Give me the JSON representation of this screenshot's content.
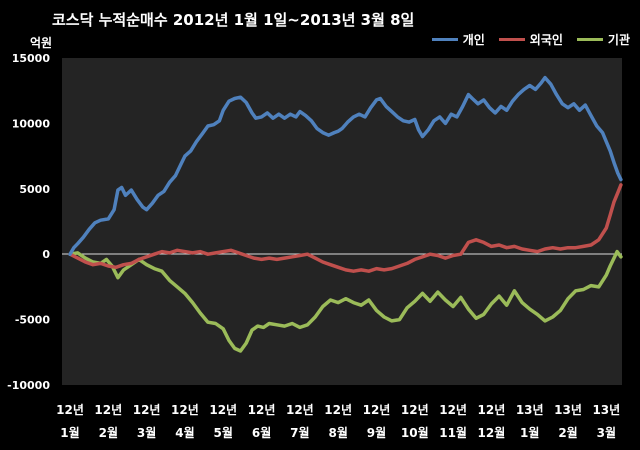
{
  "chart_data": {
    "type": "line",
    "title": "코스닥  누적순매수 2012년 1월 1일~2013년 3월 8일",
    "ylabel": "억원",
    "xlabel": "",
    "ylim": [
      -10000,
      15000
    ],
    "yticks": [
      15000,
      10000,
      5000,
      0,
      -5000,
      -10000
    ],
    "grid": false,
    "legend": "top-right",
    "x_index_range": [
      0,
      14.2
    ],
    "xtick_labels": [
      [
        "12년",
        "1월"
      ],
      [
        "12년",
        "2월"
      ],
      [
        "12년",
        "3월"
      ],
      [
        "12년",
        "4월"
      ],
      [
        "12년",
        "5월"
      ],
      [
        "12년",
        "6월"
      ],
      [
        "12년",
        "7월"
      ],
      [
        "12년",
        "8월"
      ],
      [
        "12년",
        "9월"
      ],
      [
        "12년",
        "10월"
      ],
      [
        "12년",
        "11월"
      ],
      [
        "12년",
        "12월"
      ],
      [
        "13년",
        "1월"
      ],
      [
        "13년",
        "2월"
      ],
      [
        "13년",
        "3월"
      ]
    ],
    "series": [
      {
        "name": "개인",
        "color": "#4f81bd",
        "points": [
          [
            0.0,
            0
          ],
          [
            0.1,
            500
          ],
          [
            0.2,
            800
          ],
          [
            0.35,
            1300
          ],
          [
            0.5,
            1900
          ],
          [
            0.65,
            2400
          ],
          [
            0.8,
            2600
          ],
          [
            1.0,
            2700
          ],
          [
            1.15,
            3400
          ],
          [
            1.25,
            4900
          ],
          [
            1.35,
            5100
          ],
          [
            1.45,
            4500
          ],
          [
            1.6,
            4900
          ],
          [
            1.75,
            4200
          ],
          [
            1.9,
            3600
          ],
          [
            2.0,
            3400
          ],
          [
            2.15,
            3900
          ],
          [
            2.3,
            4500
          ],
          [
            2.45,
            4800
          ],
          [
            2.6,
            5500
          ],
          [
            2.75,
            6000
          ],
          [
            2.9,
            6900
          ],
          [
            3.0,
            7500
          ],
          [
            3.15,
            7900
          ],
          [
            3.3,
            8600
          ],
          [
            3.45,
            9200
          ],
          [
            3.6,
            9800
          ],
          [
            3.75,
            9900
          ],
          [
            3.9,
            10200
          ],
          [
            4.0,
            11000
          ],
          [
            4.15,
            11700
          ],
          [
            4.3,
            11900
          ],
          [
            4.45,
            12000
          ],
          [
            4.6,
            11600
          ],
          [
            4.75,
            10800
          ],
          [
            4.85,
            10400
          ],
          [
            5.0,
            10500
          ],
          [
            5.15,
            10800
          ],
          [
            5.3,
            10400
          ],
          [
            5.45,
            10700
          ],
          [
            5.6,
            10400
          ],
          [
            5.75,
            10700
          ],
          [
            5.9,
            10500
          ],
          [
            6.0,
            10900
          ],
          [
            6.15,
            10600
          ],
          [
            6.3,
            10200
          ],
          [
            6.45,
            9600
          ],
          [
            6.6,
            9300
          ],
          [
            6.75,
            9100
          ],
          [
            6.9,
            9300
          ],
          [
            7.0,
            9400
          ],
          [
            7.1,
            9600
          ],
          [
            7.25,
            10100
          ],
          [
            7.4,
            10500
          ],
          [
            7.55,
            10700
          ],
          [
            7.7,
            10500
          ],
          [
            7.85,
            11200
          ],
          [
            8.0,
            11800
          ],
          [
            8.1,
            11900
          ],
          [
            8.25,
            11300
          ],
          [
            8.4,
            10900
          ],
          [
            8.55,
            10500
          ],
          [
            8.7,
            10200
          ],
          [
            8.85,
            10100
          ],
          [
            9.0,
            10300
          ],
          [
            9.1,
            9500
          ],
          [
            9.2,
            9000
          ],
          [
            9.35,
            9500
          ],
          [
            9.5,
            10200
          ],
          [
            9.65,
            10500
          ],
          [
            9.8,
            10000
          ],
          [
            9.95,
            10700
          ],
          [
            10.1,
            10500
          ],
          [
            10.25,
            11300
          ],
          [
            10.4,
            12200
          ],
          [
            10.5,
            11900
          ],
          [
            10.65,
            11500
          ],
          [
            10.8,
            11800
          ],
          [
            10.95,
            11200
          ],
          [
            11.1,
            10800
          ],
          [
            11.25,
            11300
          ],
          [
            11.4,
            11000
          ],
          [
            11.55,
            11700
          ],
          [
            11.7,
            12200
          ],
          [
            11.85,
            12600
          ],
          [
            12.0,
            12900
          ],
          [
            12.15,
            12600
          ],
          [
            12.3,
            13100
          ],
          [
            12.4,
            13500
          ],
          [
            12.55,
            13000
          ],
          [
            12.7,
            12200
          ],
          [
            12.85,
            11500
          ],
          [
            13.0,
            11200
          ],
          [
            13.15,
            11500
          ],
          [
            13.3,
            11000
          ],
          [
            13.45,
            11400
          ],
          [
            13.6,
            10600
          ],
          [
            13.75,
            9800
          ],
          [
            13.9,
            9300
          ],
          [
            14.0,
            8600
          ],
          [
            14.1,
            7900
          ],
          [
            14.2,
            7000
          ],
          [
            14.3,
            6200
          ],
          [
            14.38,
            5700
          ]
        ]
      },
      {
        "name": "외국인",
        "color": "#c0504d",
        "points": [
          [
            0.0,
            0
          ],
          [
            0.2,
            -300
          ],
          [
            0.4,
            -600
          ],
          [
            0.6,
            -800
          ],
          [
            0.8,
            -700
          ],
          [
            1.0,
            -900
          ],
          [
            1.2,
            -1000
          ],
          [
            1.4,
            -800
          ],
          [
            1.6,
            -700
          ],
          [
            1.8,
            -400
          ],
          [
            2.0,
            -200
          ],
          [
            2.2,
            0
          ],
          [
            2.4,
            200
          ],
          [
            2.6,
            100
          ],
          [
            2.8,
            300
          ],
          [
            3.0,
            200
          ],
          [
            3.2,
            100
          ],
          [
            3.4,
            200
          ],
          [
            3.6,
            0
          ],
          [
            3.8,
            100
          ],
          [
            4.0,
            200
          ],
          [
            4.2,
            300
          ],
          [
            4.4,
            100
          ],
          [
            4.6,
            -100
          ],
          [
            4.8,
            -300
          ],
          [
            5.0,
            -400
          ],
          [
            5.2,
            -300
          ],
          [
            5.4,
            -400
          ],
          [
            5.6,
            -300
          ],
          [
            5.8,
            -200
          ],
          [
            6.0,
            -100
          ],
          [
            6.2,
            0
          ],
          [
            6.4,
            -300
          ],
          [
            6.6,
            -600
          ],
          [
            6.8,
            -800
          ],
          [
            7.0,
            -1000
          ],
          [
            7.2,
            -1200
          ],
          [
            7.4,
            -1300
          ],
          [
            7.6,
            -1200
          ],
          [
            7.8,
            -1300
          ],
          [
            8.0,
            -1100
          ],
          [
            8.2,
            -1200
          ],
          [
            8.4,
            -1100
          ],
          [
            8.6,
            -900
          ],
          [
            8.8,
            -700
          ],
          [
            9.0,
            -400
          ],
          [
            9.2,
            -200
          ],
          [
            9.4,
            0
          ],
          [
            9.6,
            -100
          ],
          [
            9.8,
            -300
          ],
          [
            10.0,
            -100
          ],
          [
            10.2,
            0
          ],
          [
            10.4,
            900
          ],
          [
            10.6,
            1100
          ],
          [
            10.8,
            900
          ],
          [
            11.0,
            600
          ],
          [
            11.2,
            700
          ],
          [
            11.4,
            500
          ],
          [
            11.6,
            600
          ],
          [
            11.8,
            400
          ],
          [
            12.0,
            300
          ],
          [
            12.2,
            200
          ],
          [
            12.4,
            400
          ],
          [
            12.6,
            500
          ],
          [
            12.8,
            400
          ],
          [
            13.0,
            500
          ],
          [
            13.2,
            500
          ],
          [
            13.4,
            600
          ],
          [
            13.6,
            700
          ],
          [
            13.8,
            1100
          ],
          [
            14.0,
            2000
          ],
          [
            14.1,
            3000
          ],
          [
            14.2,
            4000
          ],
          [
            14.3,
            4700
          ],
          [
            14.38,
            5300
          ]
        ]
      },
      {
        "name": "기관",
        "color": "#9bbb59",
        "points": [
          [
            0.0,
            0
          ],
          [
            0.2,
            100
          ],
          [
            0.4,
            -300
          ],
          [
            0.6,
            -600
          ],
          [
            0.8,
            -700
          ],
          [
            0.95,
            -400
          ],
          [
            1.1,
            -900
          ],
          [
            1.25,
            -1800
          ],
          [
            1.4,
            -1200
          ],
          [
            1.6,
            -800
          ],
          [
            1.8,
            -400
          ],
          [
            2.0,
            -800
          ],
          [
            2.2,
            -1100
          ],
          [
            2.4,
            -1300
          ],
          [
            2.6,
            -2000
          ],
          [
            2.8,
            -2500
          ],
          [
            3.0,
            -3000
          ],
          [
            3.2,
            -3700
          ],
          [
            3.4,
            -4500
          ],
          [
            3.6,
            -5200
          ],
          [
            3.8,
            -5300
          ],
          [
            4.0,
            -5700
          ],
          [
            4.15,
            -6600
          ],
          [
            4.3,
            -7200
          ],
          [
            4.45,
            -7400
          ],
          [
            4.6,
            -6800
          ],
          [
            4.75,
            -5800
          ],
          [
            4.9,
            -5500
          ],
          [
            5.05,
            -5600
          ],
          [
            5.2,
            -5300
          ],
          [
            5.4,
            -5400
          ],
          [
            5.6,
            -5500
          ],
          [
            5.8,
            -5300
          ],
          [
            6.0,
            -5600
          ],
          [
            6.2,
            -5400
          ],
          [
            6.4,
            -4800
          ],
          [
            6.6,
            -4000
          ],
          [
            6.8,
            -3500
          ],
          [
            7.0,
            -3700
          ],
          [
            7.2,
            -3400
          ],
          [
            7.4,
            -3700
          ],
          [
            7.6,
            -3900
          ],
          [
            7.8,
            -3500
          ],
          [
            8.0,
            -4300
          ],
          [
            8.2,
            -4800
          ],
          [
            8.4,
            -5100
          ],
          [
            8.6,
            -5000
          ],
          [
            8.8,
            -4100
          ],
          [
            9.0,
            -3600
          ],
          [
            9.2,
            -3000
          ],
          [
            9.4,
            -3600
          ],
          [
            9.6,
            -2900
          ],
          [
            9.8,
            -3500
          ],
          [
            10.0,
            -4000
          ],
          [
            10.2,
            -3300
          ],
          [
            10.4,
            -4200
          ],
          [
            10.6,
            -4900
          ],
          [
            10.8,
            -4600
          ],
          [
            11.0,
            -3800
          ],
          [
            11.2,
            -3200
          ],
          [
            11.4,
            -3900
          ],
          [
            11.6,
            -2800
          ],
          [
            11.8,
            -3700
          ],
          [
            12.0,
            -4200
          ],
          [
            12.2,
            -4600
          ],
          [
            12.4,
            -5100
          ],
          [
            12.6,
            -4800
          ],
          [
            12.8,
            -4300
          ],
          [
            13.0,
            -3400
          ],
          [
            13.2,
            -2800
          ],
          [
            13.4,
            -2700
          ],
          [
            13.6,
            -2400
          ],
          [
            13.8,
            -2500
          ],
          [
            14.0,
            -1600
          ],
          [
            14.1,
            -900
          ],
          [
            14.2,
            -300
          ],
          [
            14.28,
            200
          ],
          [
            14.38,
            -200
          ]
        ]
      }
    ]
  }
}
